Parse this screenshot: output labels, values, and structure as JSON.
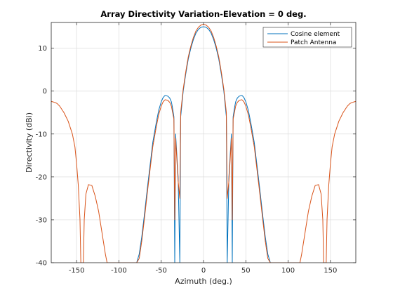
{
  "chart_data": {
    "type": "line",
    "title": "Array Directivity Variation-Elevation  = 0 deg.",
    "xlabel": "Azimuth (deg.)",
    "ylabel": "Directivity (dBi)",
    "xlim": [
      -180,
      180
    ],
    "ylim": [
      -40,
      16
    ],
    "xticks": [
      -150,
      -100,
      -50,
      0,
      50,
      100,
      150
    ],
    "yticks": [
      -40,
      -30,
      -20,
      -10,
      0,
      10
    ],
    "grid": true,
    "legend_position": "top-right",
    "series": [
      {
        "name": "Cosine element",
        "color": "#0072BD",
        "x": [
          0,
          3,
          6,
          9,
          12,
          15,
          18,
          21,
          24,
          27,
          28,
          30,
          33,
          34,
          35,
          37,
          38,
          40,
          42,
          45,
          46,
          48,
          50,
          53,
          56,
          60,
          63,
          66,
          70,
          73,
          76,
          79,
          80
        ],
        "y": [
          15,
          14.9,
          14.4,
          13.5,
          12,
          10,
          7.5,
          4,
          0,
          -6,
          -40,
          -20,
          -10,
          -40,
          -6,
          -3.5,
          -2.5,
          -1.6,
          -1.2,
          -1,
          -1.1,
          -1.6,
          -2.5,
          -4.5,
          -7.5,
          -12,
          -17,
          -22,
          -29,
          -34,
          -38,
          -40,
          -40
        ]
      },
      {
        "name": "Patch Antenna",
        "color": "#D95319",
        "x": [
          0,
          3,
          6,
          9,
          12,
          15,
          18,
          21,
          24,
          27,
          28,
          30,
          33,
          34,
          35,
          37,
          38,
          40,
          42,
          45,
          46,
          48,
          50,
          53,
          56,
          60,
          63,
          66,
          70,
          73,
          76,
          79,
          81,
          83,
          90,
          100,
          110,
          114,
          116,
          120,
          124,
          128,
          132,
          136,
          139,
          141,
          142,
          144,
          145,
          146,
          148,
          150,
          152,
          155,
          160,
          165,
          170,
          173,
          175,
          178,
          180
        ],
        "y": [
          15.6,
          15.4,
          14.9,
          14,
          12.5,
          10.5,
          8,
          4.5,
          0.5,
          -5,
          -25,
          -21,
          -11,
          -30,
          -6.5,
          -4.5,
          -3.5,
          -2.6,
          -2.2,
          -2,
          -2.1,
          -2.6,
          -3.5,
          -5.5,
          -8.5,
          -13,
          -18,
          -23,
          -30,
          -35,
          -39,
          -40,
          -40,
          -40,
          -40,
          -40,
          -40,
          -40,
          -38,
          -33,
          -28,
          -24.5,
          -22,
          -21.8,
          -24,
          -30,
          -40,
          -40,
          -40,
          -30,
          -22,
          -17,
          -13,
          -10,
          -7,
          -5,
          -3.5,
          -2.9,
          -2.7,
          -2.5,
          -2.4
        ]
      }
    ]
  }
}
